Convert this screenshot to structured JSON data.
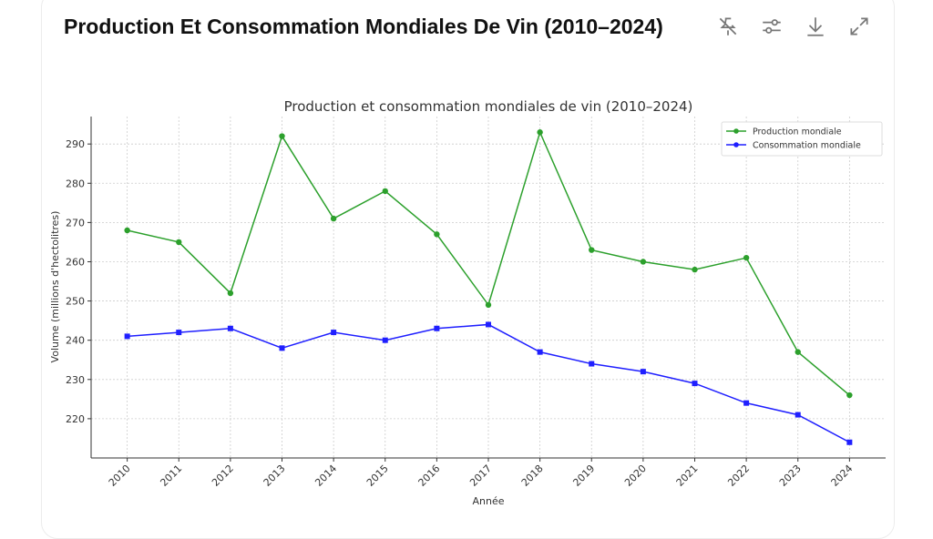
{
  "header": {
    "title": "Production Et Consommation Mondiales De Vin (2010–2024)",
    "icons": [
      "pin-off-icon",
      "sliders-icon",
      "download-icon",
      "expand-icon"
    ]
  },
  "chart_data": {
    "type": "line",
    "title": "Production et consommation mondiales de vin (2010–2024)",
    "xlabel": "Année",
    "ylabel": "Volume (millions d'hectolitres)",
    "x": [
      2010,
      2011,
      2012,
      2013,
      2014,
      2015,
      2016,
      2017,
      2018,
      2019,
      2020,
      2021,
      2022,
      2023,
      2024
    ],
    "xtick_labels": [
      "2010",
      "2011",
      "2012",
      "2013",
      "2014",
      "2015",
      "2016",
      "2017",
      "2018",
      "2019",
      "2020",
      "2021",
      "2022",
      "2023",
      "2024"
    ],
    "yticks": [
      220,
      230,
      240,
      250,
      260,
      270,
      280,
      290
    ],
    "ylim": [
      210,
      297
    ],
    "xlim": [
      2009.3,
      2024.7
    ],
    "grid": true,
    "legend_placement": "top-right",
    "series": [
      {
        "name": "Production mondiale",
        "color": "#2ca02c",
        "marker": "circle",
        "values": [
          268,
          265,
          252,
          292,
          271,
          278,
          267,
          249,
          293,
          263,
          260,
          258,
          261,
          237,
          226
        ]
      },
      {
        "name": "Consommation mondiale",
        "color": "#1f1fff",
        "marker": "square",
        "values": [
          241,
          242,
          243,
          238,
          242,
          240,
          243,
          244,
          237,
          234,
          232,
          229,
          224,
          221,
          214
        ]
      }
    ]
  }
}
